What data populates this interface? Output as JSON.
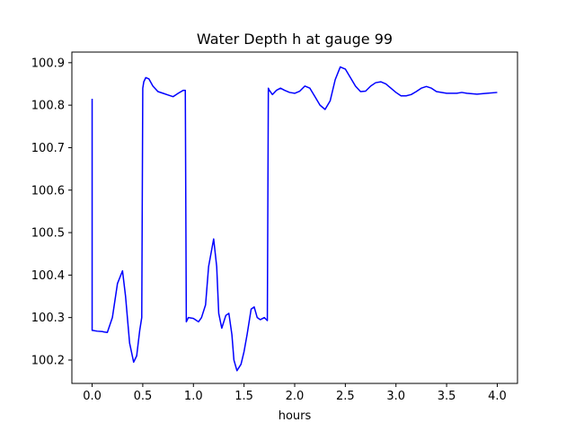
{
  "colors": {
    "line": "#0000ff",
    "axes": "#000000",
    "background": "#ffffff"
  },
  "chart_data": {
    "type": "line",
    "title": "Water Depth h at gauge 99",
    "xlabel": "hours",
    "ylabel": "",
    "xlim": [
      -0.2,
      4.2
    ],
    "ylim": [
      100.145,
      100.925
    ],
    "xticks": [
      0.0,
      0.5,
      1.0,
      1.5,
      2.0,
      2.5,
      3.0,
      3.5,
      4.0
    ],
    "xtick_labels": [
      "0.0",
      "0.5",
      "1.0",
      "1.5",
      "2.0",
      "2.5",
      "3.0",
      "3.5",
      "4.0"
    ],
    "yticks": [
      100.2,
      100.3,
      100.4,
      100.5,
      100.6,
      100.7,
      100.8,
      100.9
    ],
    "ytick_labels": [
      "100.2",
      "100.3",
      "100.4",
      "100.5",
      "100.6",
      "100.7",
      "100.8",
      "100.9"
    ],
    "grid": false,
    "legend": "none",
    "series": [
      {
        "color": "#0000ff",
        "x": [
          0.0,
          0.0,
          0.0,
          0.05,
          0.1,
          0.12,
          0.15,
          0.2,
          0.25,
          0.3,
          0.33,
          0.37,
          0.41,
          0.44,
          0.47,
          0.49,
          0.5,
          0.51,
          0.53,
          0.56,
          0.6,
          0.65,
          0.7,
          0.75,
          0.8,
          0.85,
          0.9,
          0.92,
          0.93,
          0.93,
          0.95,
          1.0,
          1.05,
          1.08,
          1.12,
          1.15,
          1.2,
          1.23,
          1.25,
          1.28,
          1.32,
          1.35,
          1.38,
          1.4,
          1.43,
          1.47,
          1.5,
          1.53,
          1.57,
          1.6,
          1.63,
          1.66,
          1.7,
          1.73,
          1.74,
          1.75,
          1.78,
          1.82,
          1.86,
          1.9,
          1.95,
          2.0,
          2.05,
          2.1,
          2.15,
          2.2,
          2.25,
          2.3,
          2.35,
          2.4,
          2.45,
          2.5,
          2.55,
          2.6,
          2.65,
          2.7,
          2.75,
          2.8,
          2.85,
          2.9,
          2.95,
          3.0,
          3.05,
          3.1,
          3.15,
          3.2,
          3.25,
          3.3,
          3.35,
          3.4,
          3.5,
          3.6,
          3.65,
          3.7,
          3.8,
          3.9,
          4.0
        ],
        "y": [
          100.815,
          100.27,
          100.27,
          100.268,
          100.267,
          100.266,
          100.265,
          100.3,
          100.38,
          100.41,
          100.35,
          100.24,
          100.195,
          100.21,
          100.27,
          100.3,
          100.84,
          100.855,
          100.865,
          100.862,
          100.845,
          100.832,
          100.828,
          100.824,
          100.82,
          100.828,
          100.835,
          100.835,
          100.29,
          100.29,
          100.3,
          100.298,
          100.29,
          100.3,
          100.33,
          100.42,
          100.485,
          100.42,
          100.31,
          100.275,
          100.305,
          100.31,
          100.26,
          100.2,
          100.175,
          100.19,
          100.22,
          100.26,
          100.32,
          100.325,
          100.3,
          100.295,
          100.3,
          100.293,
          100.84,
          100.835,
          100.825,
          100.835,
          100.84,
          100.835,
          100.83,
          100.828,
          100.833,
          100.845,
          100.84,
          100.82,
          100.8,
          100.79,
          100.81,
          100.86,
          100.89,
          100.885,
          100.865,
          100.845,
          100.832,
          100.833,
          100.845,
          100.853,
          100.855,
          100.85,
          100.84,
          100.83,
          100.822,
          100.822,
          100.825,
          100.832,
          100.84,
          100.844,
          100.84,
          100.832,
          100.828,
          100.828,
          100.83,
          100.828,
          100.826,
          100.828,
          100.83
        ]
      }
    ]
  }
}
